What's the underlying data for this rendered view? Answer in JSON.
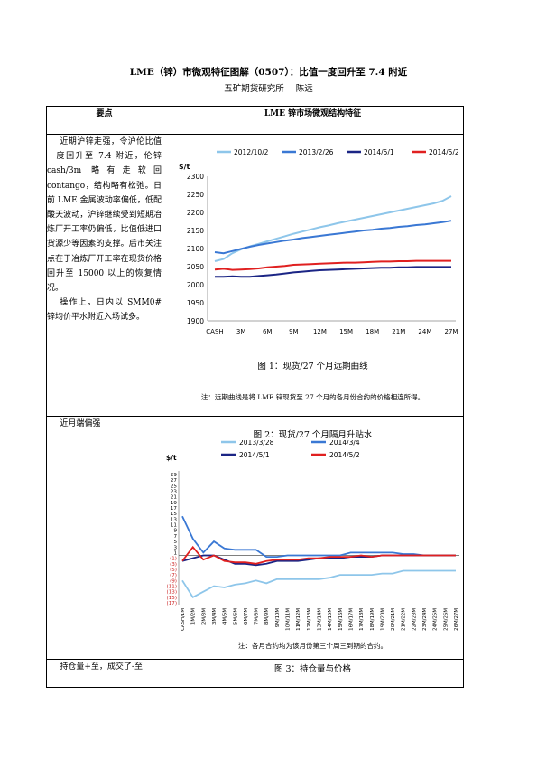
{
  "doc": {
    "title": "LME（锌）市微观特征图解（0507）：比值一度回升至 7.4 附近",
    "institute": "五矿期货研究所",
    "author": "陈远"
  },
  "table": {
    "header_left": "要点",
    "header_right": "LME 锌市场微观结构特征",
    "row1_text_p1": "近期沪锌走强，令沪伦比值一度回升至 7.4 附近，伦锌 cash/3m 略有走软回 contango，结构略有松弛。日前 LME 金属波动率偏低，低配酸天波动，沪锌继续受到短期冶炼厂开工率仍偏低，比值低进口货源少等因素的支撑。后市关注点在于冶炼厂开工率在现货价格回升至 15000 以上的恢复情况。",
    "row1_text_p2": "操作上，日内以 SMM0#锌均价平水附近入场试多。",
    "row2_text": "近月端偏强",
    "row3_text": "持仓量+至，成交了-至"
  },
  "fig1": {
    "caption": "图 1：现货/27 个月远期曲线",
    "note": "注：远期曲线是将 LME 锌现货至 27 个月的各月份合约的价格相连所得。",
    "ylabel": "$/t"
  },
  "fig2": {
    "caption": "图 2：现货/27 个月隔月升贴水",
    "note": "注：各月合约均为该月份第三个周三到期的合约。",
    "ylabel": "$/t"
  },
  "fig3": {
    "caption": "图 3：持仓量与价格"
  },
  "chart_data": [
    {
      "type": "line",
      "title": "图 1：现货/27 个月远期曲线",
      "ylabel": "$/t",
      "ylim": [
        1900,
        2300
      ],
      "yticks": [
        1900,
        1950,
        2000,
        2050,
        2100,
        2150,
        2200,
        2250,
        2300
      ],
      "x": [
        "CASH",
        "1M",
        "2M",
        "3M",
        "4M",
        "5M",
        "6M",
        "7M",
        "8M",
        "9M",
        "10M",
        "11M",
        "12M",
        "13M",
        "14M",
        "15M",
        "16M",
        "17M",
        "18M",
        "19M",
        "20M",
        "21M",
        "22M",
        "23M",
        "24M",
        "25M",
        "26M",
        "27M"
      ],
      "xticks": [
        "CASH",
        "3M",
        "6M",
        "9M",
        "12M",
        "15M",
        "18M",
        "21M",
        "24M",
        "27M"
      ],
      "legend": "top",
      "grid": false,
      "series": [
        {
          "name": "2012/10/2",
          "color": "#8ec6ea",
          "values": [
            2065,
            2071,
            2087,
            2098,
            2106,
            2113,
            2120,
            2127,
            2134,
            2141,
            2147,
            2153,
            2159,
            2164,
            2170,
            2175,
            2180,
            2185,
            2190,
            2195,
            2200,
            2205,
            2210,
            2215,
            2220,
            2225,
            2232,
            2245
          ]
        },
        {
          "name": "2013/2/26",
          "color": "#3a78d4",
          "values": [
            2090,
            2087,
            2093,
            2099,
            2105,
            2110,
            2114,
            2118,
            2122,
            2125,
            2129,
            2132,
            2135,
            2138,
            2141,
            2144,
            2147,
            2150,
            2152,
            2155,
            2157,
            2160,
            2162,
            2165,
            2167,
            2170,
            2173,
            2177
          ]
        },
        {
          "name": "2014/5/1",
          "color": "#1b2585",
          "values": [
            2022,
            2022,
            2023,
            2022,
            2022,
            2024,
            2026,
            2028,
            2031,
            2034,
            2036,
            2038,
            2040,
            2041,
            2042,
            2043,
            2044,
            2045,
            2046,
            2047,
            2047,
            2048,
            2048,
            2049,
            2049,
            2049,
            2049,
            2049
          ]
        },
        {
          "name": "2014/5/2",
          "color": "#e02020",
          "values": [
            2042,
            2044,
            2041,
            2042,
            2043,
            2045,
            2048,
            2050,
            2052,
            2055,
            2056,
            2057,
            2058,
            2059,
            2060,
            2061,
            2061,
            2062,
            2063,
            2064,
            2064,
            2065,
            2065,
            2066,
            2066,
            2066,
            2066,
            2066
          ]
        }
      ]
    },
    {
      "type": "line",
      "title": "图 2：现货/27 个月隔月升贴水",
      "ylabel": "$/t",
      "ylim": [
        -17,
        29
      ],
      "yticks": [
        "29",
        "27",
        "25",
        "23",
        "21",
        "19",
        "17",
        "15",
        "13",
        "11",
        "9",
        "7",
        "5",
        "3",
        "1",
        "(1)",
        "(3)",
        "(5)",
        "(7)",
        "(9)",
        "(11)",
        "(13)",
        "(15)",
        "(17)"
      ],
      "x": [
        "CASH/1M",
        "1M/2M",
        "2M/3M",
        "3M/4M",
        "4M/5M",
        "5M/6M",
        "6M/7M",
        "7M/8M",
        "8M/9M",
        "9M/10M",
        "10M/11M",
        "11M/12M",
        "12M/13M",
        "13M/14M",
        "14M/15M",
        "15M/16M",
        "16M/17M",
        "17M/18M",
        "18M/19M",
        "19M/20M",
        "20M/21M",
        "21M/22M",
        "22M/23M",
        "23M/24M",
        "24M/25M",
        "25M/26M",
        "26M/27M"
      ],
      "legend": "top",
      "grid": false,
      "series": [
        {
          "name": "2013/3/28",
          "color": "#8ec6ea",
          "values": [
            -9,
            -15,
            -13,
            -11,
            -11.5,
            -10.5,
            -10,
            -9,
            -10,
            -8.5,
            -8.5,
            -8.5,
            -8.5,
            -8.5,
            -8,
            -7,
            -7,
            -7,
            -7,
            -6.5,
            -6.5,
            -5.5,
            -5.5,
            -5.5,
            -5.5,
            -5.5,
            -5.5
          ]
        },
        {
          "name": "2014/3/4",
          "color": "#3a78d4",
          "values": [
            14,
            6,
            1,
            5,
            2.5,
            2,
            2,
            2,
            -0.5,
            -0.5,
            0,
            0,
            0,
            0,
            0,
            0,
            1,
            1,
            1,
            1,
            1,
            0.5,
            0.5,
            0,
            0,
            0,
            0
          ]
        },
        {
          "name": "2014/5/1",
          "color": "#1b2585",
          "values": [
            -2,
            -1,
            0,
            0,
            -1.5,
            -3,
            -3,
            -3.5,
            -3,
            -2,
            -2,
            -2,
            -1.5,
            -1,
            -1,
            -1,
            -0.5,
            -0.5,
            -0.5,
            0,
            0,
            0,
            0,
            0,
            0,
            0,
            0
          ]
        },
        {
          "name": "2014/5/2",
          "color": "#e02020",
          "values": [
            -2,
            3,
            -1.5,
            0,
            -2,
            -2.5,
            -2.5,
            -3,
            -2,
            -1.5,
            -1.5,
            -1.5,
            -1,
            -1,
            -0.5,
            -0.5,
            -0.5,
            0,
            -0.5,
            0,
            0,
            0,
            0,
            0,
            0,
            0,
            0
          ]
        }
      ]
    }
  ]
}
